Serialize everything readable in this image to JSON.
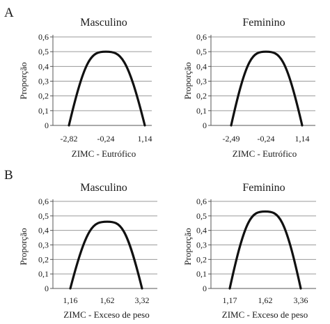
{
  "sections": [
    {
      "letter": "A"
    },
    {
      "letter": "B"
    }
  ],
  "chart_data": [
    {
      "type": "line",
      "section": "A",
      "title": "Masculino",
      "xlabel": "ZIMC - Eutrófico",
      "ylabel": "Proporção",
      "ylim": [
        0,
        0.6
      ],
      "yticks": [
        "0",
        "0,1",
        "0,2",
        "0,3",
        "0,4",
        "0,5",
        "0,6"
      ],
      "xticks": [
        "-2,82",
        "-0,24",
        "1,14"
      ],
      "series": [
        {
          "x": [
            -2.82,
            -0.24,
            1.14
          ],
          "y": [
            0,
            0.5,
            0
          ]
        }
      ],
      "grid": true
    },
    {
      "type": "line",
      "section": "A",
      "title": "Feminino",
      "xlabel": "ZIMC - Eutrófico",
      "ylabel": "Proporção",
      "ylim": [
        0,
        0.6
      ],
      "yticks": [
        "0",
        "0,1",
        "0,2",
        "0,3",
        "0,4",
        "0,5",
        "0,6"
      ],
      "xticks": [
        "-2,49",
        "-0,24",
        "1,14"
      ],
      "series": [
        {
          "x": [
            -2.49,
            -0.24,
            1.14
          ],
          "y": [
            0,
            0.5,
            0
          ]
        }
      ],
      "grid": true
    },
    {
      "type": "line",
      "section": "B",
      "title": "Masculino",
      "xlabel": "ZIMC - Exceso de peso",
      "ylabel": "Proporção",
      "ylim": [
        0,
        0.6
      ],
      "yticks": [
        "0",
        "0,1",
        "0,2",
        "0,3",
        "0,4",
        "0,5",
        "0,6"
      ],
      "xticks": [
        "1,16",
        "1,62",
        "3,32"
      ],
      "series": [
        {
          "x": [
            1.16,
            1.62,
            3.32
          ],
          "y": [
            0,
            0.46,
            0
          ]
        }
      ],
      "grid": true
    },
    {
      "type": "line",
      "section": "B",
      "title": "Feminino",
      "xlabel": "ZIMC - Exceso de peso",
      "ylabel": "Proporção",
      "ylim": [
        0,
        0.6
      ],
      "yticks": [
        "0",
        "0,1",
        "0,2",
        "0,3",
        "0,4",
        "0,5",
        "0,6"
      ],
      "xticks": [
        "1,17",
        "1,62",
        "3,36"
      ],
      "series": [
        {
          "x": [
            1.17,
            1.62,
            3.36
          ],
          "y": [
            0,
            0.53,
            0
          ]
        }
      ],
      "grid": true
    }
  ]
}
